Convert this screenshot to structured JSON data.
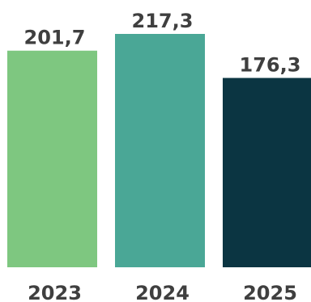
{
  "chart_data": {
    "type": "bar",
    "categories": [
      "2023",
      "2024",
      "2025"
    ],
    "values": [
      201.7,
      217.3,
      176.3
    ],
    "value_labels": [
      "201,7",
      "217,3",
      "176,3"
    ],
    "colors": [
      "#7ec780",
      "#4aa796",
      "#0b3542"
    ],
    "ylim": [
      0,
      217.3
    ],
    "grid": false,
    "legend": "none",
    "title": "",
    "xlabel": "",
    "ylabel": ""
  }
}
